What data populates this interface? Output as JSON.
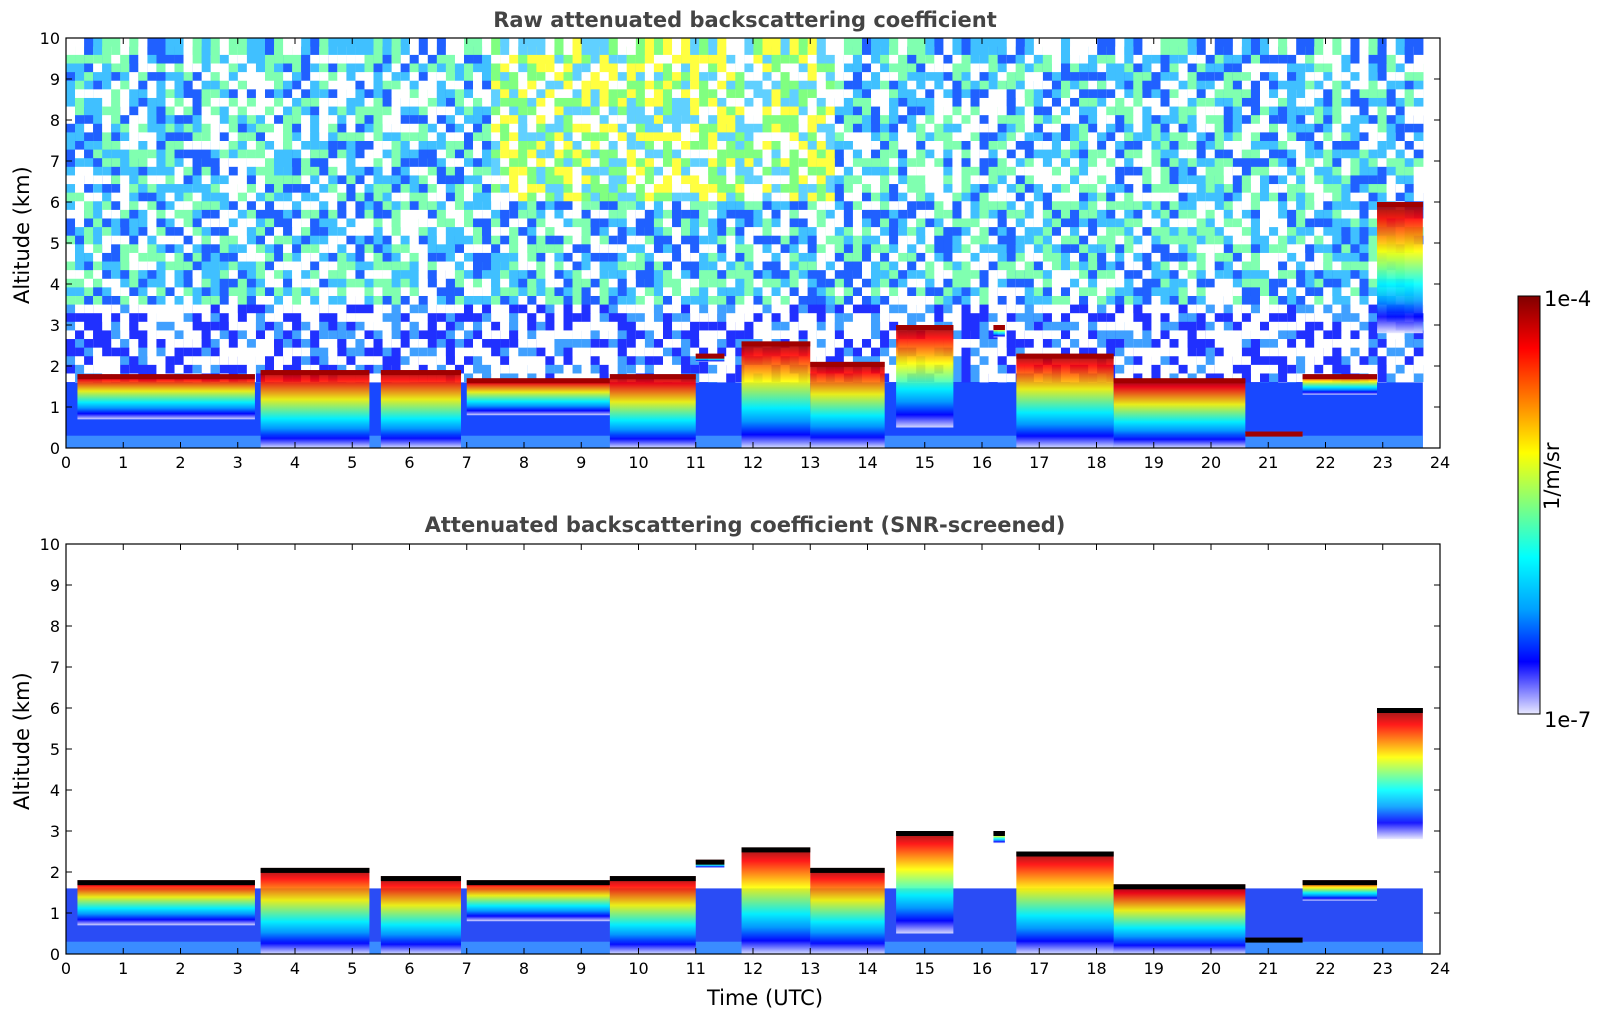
{
  "chart_data": [
    {
      "type": "heatmap",
      "title": "Raw attenuated backscattering coefficient",
      "xlabel": "",
      "ylabel": "Altitude (km)",
      "xlim": [
        0,
        24
      ],
      "ylim": [
        0,
        10
      ],
      "x_ticks": [
        "0",
        "1",
        "2",
        "3",
        "4",
        "5",
        "6",
        "7",
        "8",
        "9",
        "10",
        "11",
        "12",
        "13",
        "14",
        "15",
        "16",
        "17",
        "18",
        "19",
        "20",
        "21",
        "22",
        "23",
        "24"
      ],
      "y_ticks": [
        "0",
        "1",
        "2",
        "3",
        "4",
        "5",
        "6",
        "7",
        "8",
        "9",
        "10"
      ],
      "data_end_time": 23.7,
      "background_layer": {
        "near_surface_top_km": 0.3,
        "boundary_layer_top_km": 1.6,
        "upper_noise_level": "mid",
        "upper_noise_peak_hours": [
          7.5,
          13.5
        ]
      },
      "cloud_layers": [
        {
          "start": 0.2,
          "end": 3.3,
          "top_km": 1.8,
          "base_km": 0.7,
          "intensity": "high"
        },
        {
          "start": 3.4,
          "end": 5.3,
          "top_km": 1.9,
          "base_km": 0.0,
          "intensity": "high"
        },
        {
          "start": 5.5,
          "end": 6.9,
          "top_km": 1.9,
          "base_km": 0.0,
          "intensity": "high"
        },
        {
          "start": 7.0,
          "end": 9.5,
          "top_km": 1.7,
          "base_km": 0.8,
          "intensity": "high"
        },
        {
          "start": 9.5,
          "end": 11.0,
          "top_km": 1.8,
          "base_km": 0.0,
          "intensity": "high"
        },
        {
          "start": 11.0,
          "end": 11.5,
          "top_km": 2.3,
          "base_km": 2.1,
          "intensity": "high"
        },
        {
          "start": 11.8,
          "end": 13.0,
          "top_km": 2.6,
          "base_km": 0.0,
          "intensity": "high"
        },
        {
          "start": 13.0,
          "end": 14.3,
          "top_km": 2.1,
          "base_km": 0.0,
          "intensity": "high"
        },
        {
          "start": 14.5,
          "end": 15.5,
          "top_km": 3.0,
          "base_km": 0.5,
          "intensity": "high"
        },
        {
          "start": 16.2,
          "end": 16.4,
          "top_km": 3.0,
          "base_km": 2.7,
          "intensity": "high"
        },
        {
          "start": 16.6,
          "end": 18.3,
          "top_km": 2.3,
          "base_km": 0.0,
          "intensity": "high"
        },
        {
          "start": 18.3,
          "end": 20.6,
          "top_km": 1.7,
          "base_km": 0.0,
          "intensity": "high"
        },
        {
          "start": 20.6,
          "end": 21.6,
          "top_km": 0.4,
          "base_km": 0.3,
          "intensity": "high"
        },
        {
          "start": 21.6,
          "end": 22.9,
          "top_km": 1.8,
          "base_km": 1.3,
          "intensity": "high"
        },
        {
          "start": 22.9,
          "end": 23.7,
          "top_km": 6.0,
          "base_km": 2.8,
          "intensity": "high"
        }
      ]
    },
    {
      "type": "heatmap",
      "title": "Attenuated backscattering coefficient (SNR-screened)",
      "xlabel": "Time (UTC)",
      "ylabel": "Altitude (km)",
      "xlim": [
        0,
        24
      ],
      "ylim": [
        0,
        10
      ],
      "x_ticks": [
        "0",
        "1",
        "2",
        "3",
        "4",
        "5",
        "6",
        "7",
        "8",
        "9",
        "10",
        "11",
        "12",
        "13",
        "14",
        "15",
        "16",
        "17",
        "18",
        "19",
        "20",
        "21",
        "22",
        "23",
        "24"
      ],
      "y_ticks": [
        "0",
        "1",
        "2",
        "3",
        "4",
        "5",
        "6",
        "7",
        "8",
        "9",
        "10"
      ],
      "data_end_time": 23.7,
      "background_layer": {
        "near_surface_top_km": 0.3,
        "boundary_layer_top_km": 1.6,
        "upper_noise_level": "screened"
      },
      "cloud_layers": [
        {
          "start": 0.2,
          "end": 3.3,
          "top_km": 1.8,
          "base_km": 0.7,
          "intensity": "high"
        },
        {
          "start": 3.4,
          "end": 5.3,
          "top_km": 2.1,
          "base_km": 0.0,
          "intensity": "high"
        },
        {
          "start": 5.5,
          "end": 6.9,
          "top_km": 1.9,
          "base_km": 0.0,
          "intensity": "high"
        },
        {
          "start": 7.0,
          "end": 9.5,
          "top_km": 1.8,
          "base_km": 0.8,
          "intensity": "high"
        },
        {
          "start": 9.5,
          "end": 11.0,
          "top_km": 1.9,
          "base_km": 0.0,
          "intensity": "high"
        },
        {
          "start": 11.0,
          "end": 11.5,
          "top_km": 2.3,
          "base_km": 2.1,
          "intensity": "high"
        },
        {
          "start": 11.8,
          "end": 13.0,
          "top_km": 2.6,
          "base_km": 0.0,
          "intensity": "high"
        },
        {
          "start": 13.0,
          "end": 14.3,
          "top_km": 2.1,
          "base_km": 0.0,
          "intensity": "high"
        },
        {
          "start": 14.5,
          "end": 15.5,
          "top_km": 3.0,
          "base_km": 0.5,
          "intensity": "high"
        },
        {
          "start": 16.2,
          "end": 16.4,
          "top_km": 3.0,
          "base_km": 2.7,
          "intensity": "high"
        },
        {
          "start": 16.6,
          "end": 18.3,
          "top_km": 2.5,
          "base_km": 0.0,
          "intensity": "high"
        },
        {
          "start": 18.3,
          "end": 20.6,
          "top_km": 1.7,
          "base_km": 0.0,
          "intensity": "high"
        },
        {
          "start": 20.6,
          "end": 21.6,
          "top_km": 0.4,
          "base_km": 0.3,
          "intensity": "high"
        },
        {
          "start": 21.6,
          "end": 22.9,
          "top_km": 1.8,
          "base_km": 1.3,
          "intensity": "high"
        },
        {
          "start": 22.9,
          "end": 23.7,
          "top_km": 6.0,
          "base_km": 2.8,
          "intensity": "high"
        }
      ]
    }
  ],
  "colorbar": {
    "label": "1/m/sr",
    "min_label": "1e-7",
    "max_label": "1e-4",
    "scale": "log",
    "colormap": "jet",
    "colors": [
      "#e8e8ff",
      "#0000ff",
      "#00a0ff",
      "#00ffff",
      "#7fff7f",
      "#ffff00",
      "#ff8000",
      "#ff0000",
      "#800000"
    ]
  }
}
